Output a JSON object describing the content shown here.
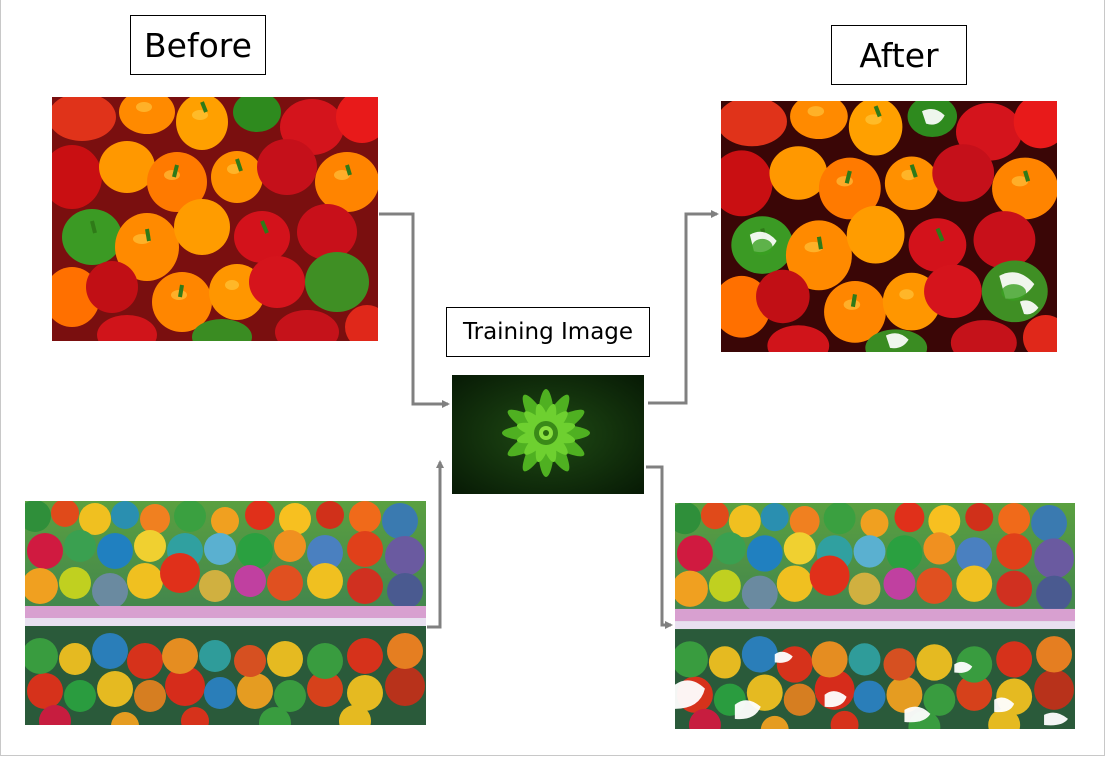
{
  "labels": {
    "before": "Before",
    "after": "After",
    "training": "Training Image"
  },
  "colors": {
    "arrow": "#808080",
    "label_border": "#000000"
  },
  "images": {
    "before_top": "bell peppers photo (original)",
    "before_bottom": "colorful autumn lake landscape (original)",
    "training": "green succulent plant on dark background",
    "after_top": "bell peppers photo (color-transferred)",
    "after_bottom": "colorful autumn lake landscape (color-transferred)"
  }
}
